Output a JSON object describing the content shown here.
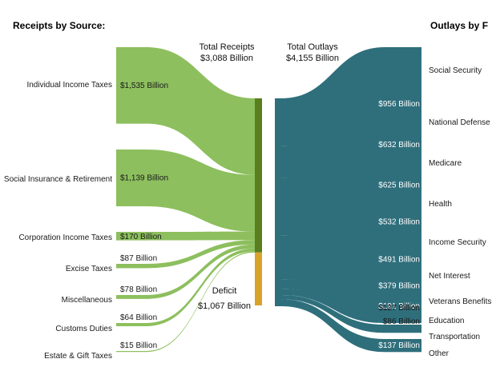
{
  "chart_data": {
    "type": "sankey",
    "headers": {
      "receipts": "Receipts by Source:",
      "outlays": "Outlays by F"
    },
    "totals": {
      "receipts_label": "Total Receipts",
      "receipts_value": "$3,088 Billion",
      "outlays_label": "Total Outlays",
      "outlays_value": "$4,155 Billion",
      "deficit_label": "Deficit",
      "deficit_value": "$1,067 Billion"
    },
    "colors": {
      "receipts": "#8dbf5e",
      "receipts_bar": "#5a7d1e",
      "deficit": "#d9a32a",
      "outlays": "#2f6f7c"
    },
    "receipts": [
      {
        "name": "Individual Income Taxes",
        "value": 1535,
        "label": "$1,535 Billion"
      },
      {
        "name": "Social Insurance & Retirement",
        "value": 1139,
        "label": "$1,139 Billion"
      },
      {
        "name": "Corporation Income Taxes",
        "value": 170,
        "label": "$170 Billion"
      },
      {
        "name": "Excise Taxes",
        "value": 87,
        "label": "$87 Billion"
      },
      {
        "name": "Miscellaneous",
        "value": 78,
        "label": "$78 Billion"
      },
      {
        "name": "Customs Duties",
        "value": 64,
        "label": "$64 Billion"
      },
      {
        "name": "Estate & Gift Taxes",
        "value": 15,
        "label": "$15 Billion"
      }
    ],
    "outlays": [
      {
        "name": "Social Security",
        "value": 956,
        "label": "$956 Billion"
      },
      {
        "name": "National Defense",
        "value": 632,
        "label": "$632 Billion"
      },
      {
        "name": "Medicare",
        "value": 625,
        "label": "$625 Billion"
      },
      {
        "name": "Health",
        "value": 532,
        "label": "$532 Billion"
      },
      {
        "name": "Income Security",
        "value": 491,
        "label": "$491 Billion"
      },
      {
        "name": "Net Interest",
        "value": 379,
        "label": "$379 Billion"
      },
      {
        "name": "Veterans Benefits",
        "value": 191,
        "label": "$191 Billion"
      },
      {
        "name": "Education",
        "value": 127,
        "label": "$127 Billion"
      },
      {
        "name": "Transportation",
        "value": 86,
        "label": "$86 Billion"
      },
      {
        "name": "Other",
        "value": 137,
        "label": "$137 Billion"
      }
    ]
  }
}
